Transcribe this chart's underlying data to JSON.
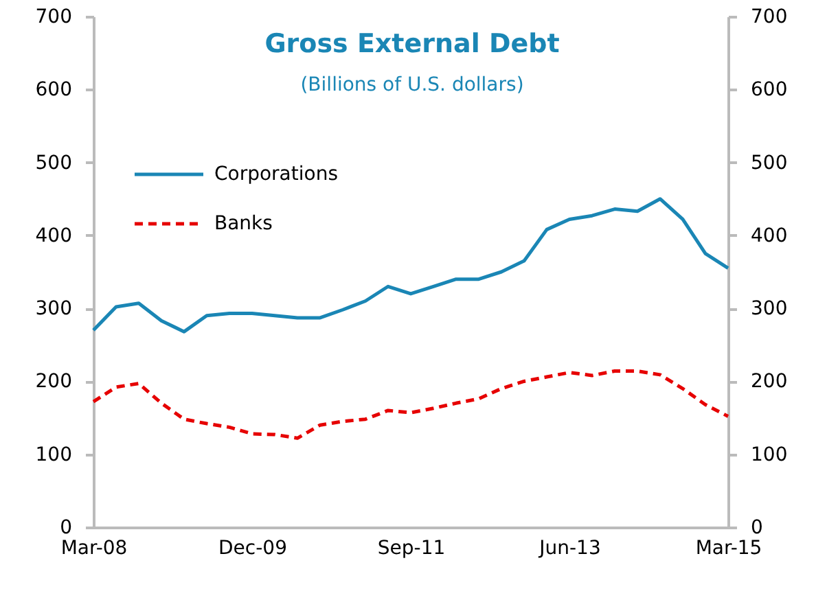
{
  "chart_data": {
    "type": "line",
    "title": "Gross External Debt",
    "subtitle": "(Billions of U.S. dollars)",
    "categories": [
      "Mar-08",
      null,
      null,
      null,
      null,
      null,
      null,
      "Dec-09",
      null,
      null,
      null,
      null,
      null,
      null,
      "Sep-11",
      null,
      null,
      null,
      null,
      null,
      null,
      "Jun-13",
      null,
      null,
      null,
      null,
      null,
      null,
      "Mar-15"
    ],
    "series": [
      {
        "name": "Corporations",
        "color": "#1a86b5",
        "line_style": "solid",
        "values": [
          270,
          302,
          307,
          283,
          268,
          290,
          293,
          293,
          290,
          287,
          287,
          298,
          310,
          330,
          320,
          330,
          340,
          340,
          350,
          365,
          408,
          422,
          427,
          436,
          433,
          450,
          422,
          375,
          355
        ]
      },
      {
        "name": "Banks",
        "color": "#e60000",
        "line_style": "dashed",
        "values": [
          172,
          192,
          197,
          170,
          148,
          142,
          137,
          128,
          127,
          122,
          140,
          145,
          148,
          160,
          157,
          163,
          170,
          176,
          190,
          200,
          206,
          212,
          208,
          214,
          214,
          209,
          190,
          168,
          152
        ]
      }
    ],
    "ylim": [
      0,
      700
    ],
    "yticks": [
      0,
      100,
      200,
      300,
      400,
      500,
      600,
      700
    ],
    "y2lim": [
      0,
      700
    ],
    "y2ticks": [
      0,
      100,
      200,
      300,
      400,
      500,
      600,
      700
    ],
    "grid": false,
    "legend": "top left",
    "marker": "none"
  }
}
